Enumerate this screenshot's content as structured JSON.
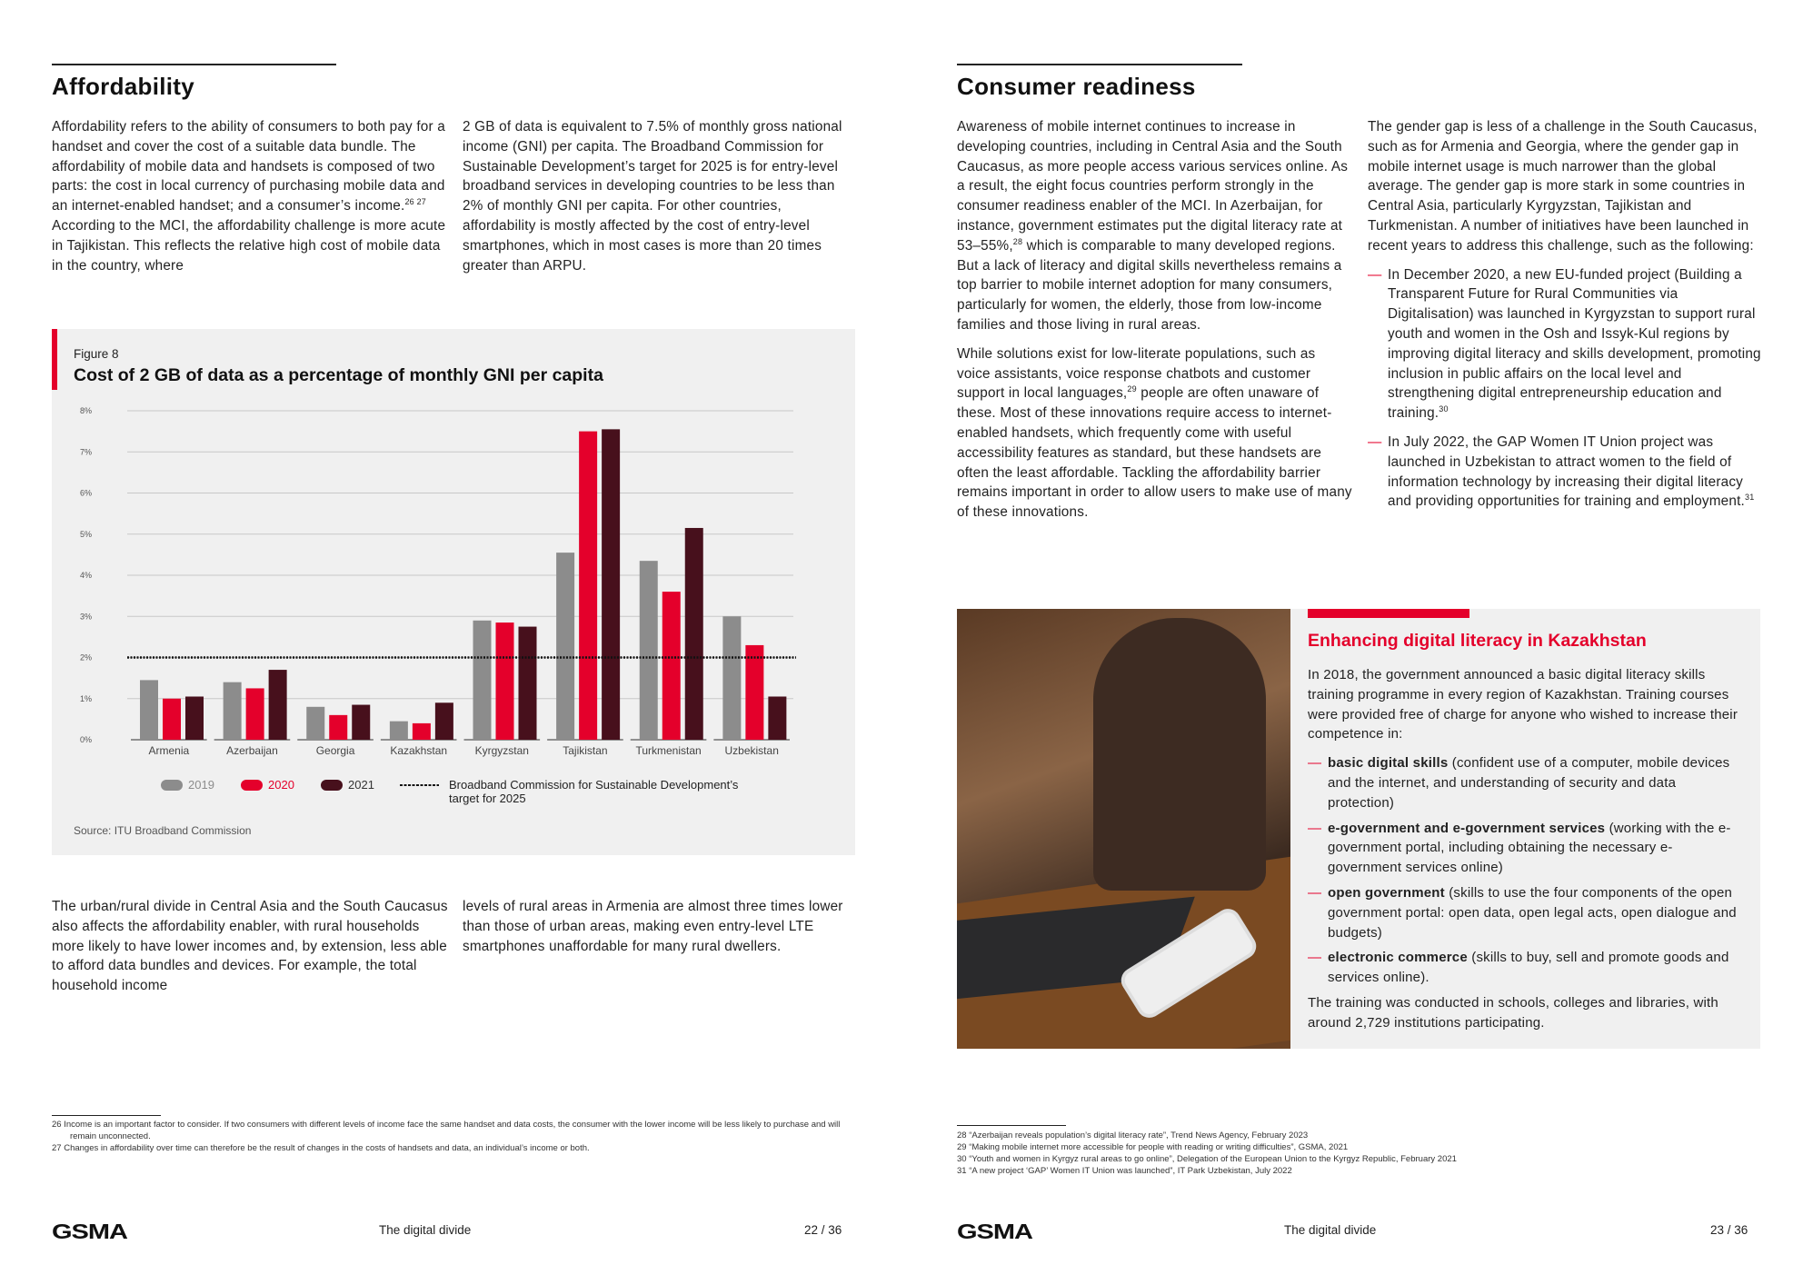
{
  "left": {
    "heading": "Affordability",
    "col1": [
      [
        {
          "t": "Affordability refers to the ability of consumers to both pay for a handset and cover the cost of a suitable data bundle. The affordability of mobile data and handsets is composed of two parts: the cost in local currency of purchasing mobile data and an internet-enabled handset; and a consumer’s income."
        },
        {
          "sup": "26 27"
        },
        {
          "t": " According to the MCI, the affordability challenge is more acute in Tajikistan. This reflects the relative high cost of mobile data in the country, where"
        }
      ]
    ],
    "col2": [
      [
        {
          "t": "2 GB of data is equivalent to 7.5% of monthly gross national income (GNI) per capita. The Broadband Commission for Sustainable Development’s target for 2025 is for entry-level broadband services in developing countries to be less than 2% of monthly GNI per capita. For other countries, affordability is mostly affected by the cost of entry-level smartphones, which in most cases is more than 20 times greater than ARPU."
        }
      ]
    ],
    "col3": [
      [
        {
          "t": "The urban/rural divide in Central Asia and the South Caucasus also affects the affordability enabler, with rural households more likely to have lower incomes and, by extension, less able to afford data bundles and devices. For example, the total household income"
        }
      ]
    ],
    "col4": [
      [
        {
          "t": "levels of rural areas in Armenia are almost three times lower than those of urban areas, making even entry-level LTE smartphones unaffordable for many rural dwellers."
        }
      ]
    ],
    "footnotes": [
      "26  Income is an important factor to consider. If two consumers with different levels of income face the same handset and data costs, the consumer with the lower income will be less likely to purchase and will remain unconnected.",
      "27  Changes in affordability over time can therefore be the result of changes in the costs of handsets and data, an individual’s income or both."
    ],
    "footer": {
      "logo": "GSMA",
      "title": "The digital divide",
      "page": "22 / 36"
    }
  },
  "figure": {
    "label": "Figure 8",
    "source": "Source: ITU Broadband Commission"
  },
  "chart_data": {
    "type": "bar",
    "title": "Cost of 2 GB of data as a percentage of monthly GNI per capita",
    "categories": [
      "Armenia",
      "Azerbaijan",
      "Georgia",
      "Kazakhstan",
      "Kyrgyzstan",
      "Tajikistan",
      "Turkmenistan",
      "Uzbekistan"
    ],
    "series": [
      {
        "name": "2019",
        "color": "#8c8c8c",
        "values": [
          1.45,
          1.4,
          0.8,
          0.45,
          2.9,
          4.55,
          4.35,
          3.0
        ]
      },
      {
        "name": "2020",
        "color": "#e4002b",
        "values": [
          1.0,
          1.25,
          0.6,
          0.4,
          2.85,
          7.5,
          3.6,
          2.3
        ]
      },
      {
        "name": "2021",
        "color": "#47101c",
        "values": [
          1.05,
          1.7,
          0.85,
          0.9,
          2.75,
          7.55,
          5.15,
          1.05
        ]
      }
    ],
    "yticks": [
      "0%",
      "1%",
      "2%",
      "3%",
      "4%",
      "5%",
      "6%",
      "7%",
      "8%"
    ],
    "ylim": [
      0,
      8
    ],
    "reference_line": {
      "value": 2,
      "label": "Broadband Commission for Sustainable Development’s target for 2025"
    },
    "grid": true,
    "legend": "bottom"
  },
  "right": {
    "heading": "Consumer readiness",
    "col1": [
      [
        {
          "t": "Awareness of mobile internet continues to increase in developing countries, including in Central Asia and the South Caucasus, as more people access various services online. As a result, the eight focus countries perform strongly in the consumer readiness enabler of the MCI. In Azerbaijan, for instance, government estimates put the digital literacy rate at 53–55%,"
        },
        {
          "sup": "28"
        },
        {
          "t": " which is comparable to many developed regions. But a lack of literacy and digital skills nevertheless remains a top barrier to mobile internet adoption for many consumers, particularly for women, the elderly, those from low-income families and those living in rural areas."
        }
      ],
      [
        {
          "t": "While solutions exist for low-literate populations, such as voice assistants, voice response chatbots and customer support in local languages,"
        },
        {
          "sup": "29"
        },
        {
          "t": " people are often unaware of these. Most of these innovations require access to internet-enabled handsets, which frequently come with useful accessibility features as standard, but these handsets are often the least affordable. Tackling the affordability barrier remains important in order to allow users to make use of many of these innovations."
        }
      ]
    ],
    "col2_intro": [
      {
        "t": "The gender gap is less of a challenge in the South Caucasus, such as for Armenia and Georgia, where the gender gap in mobile internet usage is much narrower than the global average. The gender gap is more stark in some countries in Central Asia, particularly Kyrgyzstan, Tajikistan and Turkmenistan. A number of initiatives have been launched in recent years to address this challenge, such as the following:"
      }
    ],
    "col2_bullets": [
      [
        {
          "t": "In December 2020, a new EU-funded project (Building a Transparent Future for Rural Communities via Digitalisation) was launched in Kyrgyzstan to support rural youth and women in the Osh and Issyk-Kul regions by improving digital literacy and skills development, promoting inclusion in public affairs on the local level and strengthening digital entrepreneurship education and training."
        },
        {
          "sup": "30"
        }
      ],
      [
        {
          "t": "In July 2022, the GAP Women IT Union project was launched in Uzbekistan to attract women to the field of information technology by increasing their digital literacy and providing opportunities for training and employment."
        },
        {
          "sup": "31"
        }
      ]
    ],
    "box": {
      "heading": "Enhancing digital literacy in Kazakhstan",
      "intro": "In 2018, the government announced a basic digital literacy skills training programme in every region of Kazakhstan. Training courses were provided free of charge for anyone who wished to increase their competence in:",
      "bullets": [
        {
          "b": "basic digital skills",
          "t": " (confident use of a computer, mobile devices and the internet, and understanding of security and data protection)"
        },
        {
          "b": "e-government and e-government services",
          "t": " (working with the e-government portal, including obtaining the necessary e-government services online)"
        },
        {
          "b": "open government",
          "t": " (skills to use the four components of the open government portal: open data, open legal acts, open dialogue and budgets)"
        },
        {
          "b": "electronic commerce",
          "t": " (skills to buy, sell and promote goods and services online)."
        }
      ],
      "outro": "The training was conducted in schools, colleges and libraries, with around 2,729 institutions participating."
    },
    "footnotes": [
      "28  “Azerbaijan reveals population’s digital literacy rate”, Trend News Agency, February 2023",
      "29  “Making mobile internet more accessible for people with reading or writing difficulties”, GSMA, 2021",
      "30  “Youth and women in Kyrgyz rural areas to go online”, Delegation of the European Union to the Kyrgyz Republic, February 2021",
      "31  “A new project ‘GAP’ Women IT Union was launched”, IT Park Uzbekistan, July 2022"
    ],
    "footer": {
      "logo": "GSMA",
      "title": "The digital divide",
      "page": "23 / 36"
    }
  }
}
